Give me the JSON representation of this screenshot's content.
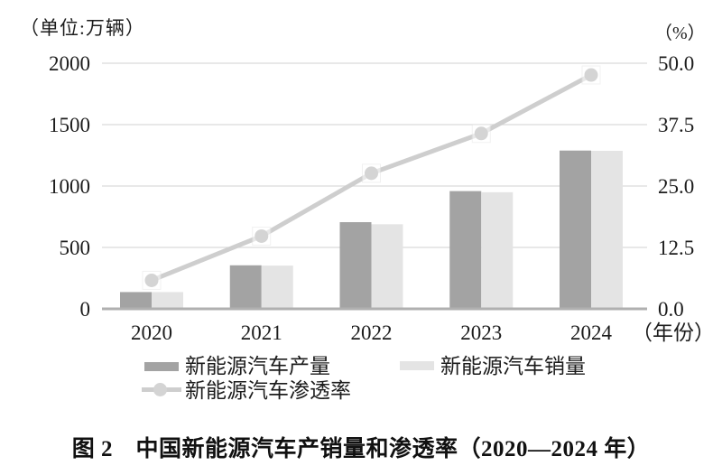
{
  "figure": {
    "unit_label": "（单位:万辆）",
    "percent_label": "（%）",
    "x_axis_suffix": "（年份）",
    "caption": "图 2　中国新能源汽车产销量和渗透率（2020—2024 年）"
  },
  "legend": {
    "production": "新能源汽车产量",
    "sales": "新能源汽车销量",
    "penetration": "新能源汽车渗透率"
  },
  "colors": {
    "production_bar": "#a3a3a3",
    "sales_bar": "#e4e4e4",
    "penetration_line": "#cecece",
    "penetration_marker": "#d4d4d4",
    "gridline": "#d9d9d9",
    "axis_baseline": "#b0b0b0",
    "text": "#1c1c1c"
  },
  "chart_data": {
    "type": "bar+line combo",
    "title": "",
    "categories": [
      "2020",
      "2021",
      "2022",
      "2023",
      "2024"
    ],
    "series": [
      {
        "name": "新能源汽车产量",
        "type": "bar",
        "axis": "left",
        "color": "#a3a3a3",
        "values": [
          136.6,
          354.5,
          705.8,
          958.7,
          1288.8
        ]
      },
      {
        "name": "新能源汽车销量",
        "type": "bar",
        "axis": "left",
        "color": "#e4e4e4",
        "values": [
          136.7,
          352.1,
          688.7,
          949.5,
          1286.6
        ]
      },
      {
        "name": "新能源汽车渗透率",
        "type": "line",
        "axis": "right",
        "color": "#cecece",
        "marker": "circle",
        "marker_color": "#d4d4d4",
        "values": [
          5.8,
          14.8,
          27.6,
          35.7,
          47.6
        ]
      }
    ],
    "left_axis": {
      "title": "（单位:万辆）",
      "ticks": [
        "0",
        "500",
        "1000",
        "1500",
        "2000"
      ],
      "range": [
        0,
        2000
      ]
    },
    "right_axis": {
      "title": "（%）",
      "ticks": [
        "0.0",
        "12.5",
        "25.0",
        "37.5",
        "50.0"
      ],
      "range": [
        0,
        50
      ]
    },
    "xlabel": "（年份）",
    "grid": true,
    "legend_position": "bottom"
  }
}
